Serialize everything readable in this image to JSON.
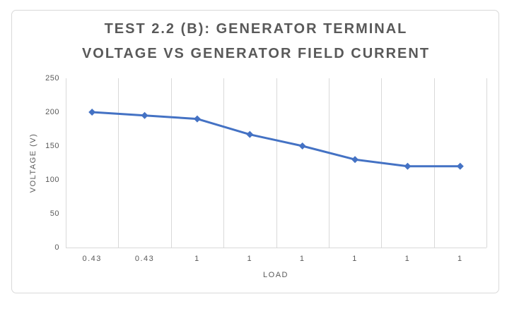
{
  "title_lines": [
    "TEST 2.2 (B): GENERATOR TERMINAL",
    "VOLTAGE VS GENERATOR FIELD CURRENT"
  ],
  "chart_data": {
    "type": "line",
    "title": "TEST 2.2 (B): GENERATOR TERMINAL VOLTAGE VS GENERATOR FIELD CURRENT",
    "categories": [
      "0.43",
      "0.43",
      "1",
      "1",
      "1",
      "1",
      "1",
      "1"
    ],
    "values": [
      200,
      195,
      190,
      167,
      150,
      130,
      120,
      120
    ],
    "xlabel": "LOAD",
    "ylabel": "VOLTAGE (V)",
    "ylim": [
      0,
      250
    ],
    "y_ticks": [
      250,
      200,
      150,
      100,
      50,
      0
    ],
    "grid": "vertical-major-only",
    "legend_position": "none",
    "marker": "diamond",
    "colors": {
      "series_line": "#4472C4",
      "gridline": "#D9D9D9",
      "axis_line": "#D9D9D9",
      "tick_text": "#595959",
      "title_text": "#595959",
      "frame_border": "#D9D9D9",
      "background": "#FFFFFF"
    }
  }
}
